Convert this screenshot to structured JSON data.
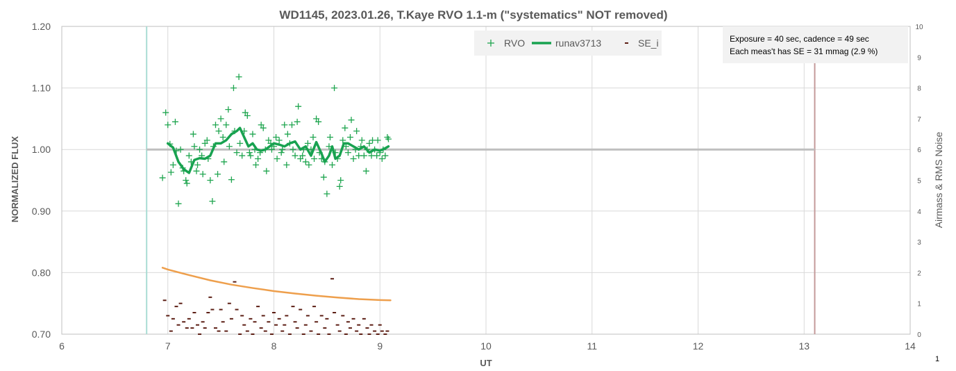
{
  "chart_data": {
    "type": "scatter",
    "title": "WD1145, 2023.01.26, T.Kaye RVO 1.1-m (\"systematics\" NOT removed)",
    "xlabel": "UT",
    "ylabel": "NORMALIZED FLUX",
    "y2label": "Airmass & RMS Noise",
    "xlim": [
      6,
      14
    ],
    "ylim": [
      0.7,
      1.2
    ],
    "y2lim": [
      0,
      10
    ],
    "x_ticks": [
      "6",
      "7",
      "8",
      "9",
      "10",
      "11",
      "12",
      "13",
      "14"
    ],
    "y_ticks": [
      "0.70",
      "0.80",
      "0.90",
      "1.00",
      "1.10",
      "1.20"
    ],
    "y2_ticks": [
      "0",
      "1",
      "2",
      "3",
      "4",
      "5",
      "6",
      "7",
      "8",
      "9",
      "10"
    ],
    "grid": true,
    "legend_position": "top-center",
    "legend": [
      "RVO",
      "runav3713",
      "SE_i"
    ],
    "note_lines": [
      "Exposure = 40 sec, cadence = 49 sec",
      "Each  meas't has SE = 31 mmag (2.9 %)"
    ],
    "corner_label": "1",
    "reference_lines": {
      "flux_level": 1.0,
      "flux_level_range": [
        6.8,
        13.1
      ],
      "start_ut": 6.8,
      "end_ut": 13.1
    },
    "colors": {
      "rvo": "#1fa54f",
      "runav": "#18a250",
      "se": "#5c1e14",
      "airmass": "#ee9f4c",
      "reference": "#bfbfbf",
      "start_line": "#a9dcd4",
      "end_line": "#c49a9a",
      "grid": "#d9d9d9"
    },
    "series": [
      {
        "name": "RVO",
        "axis": "left",
        "marker": "plus",
        "points": [
          [
            6.95,
            0.954
          ],
          [
            6.98,
            1.06
          ],
          [
            7.0,
            1.04
          ],
          [
            7.02,
            1.009
          ],
          [
            7.03,
            0.963
          ],
          [
            7.05,
            0.975
          ],
          [
            7.07,
            1.045
          ],
          [
            7.08,
            0.998
          ],
          [
            7.1,
            0.912
          ],
          [
            7.12,
            1.0
          ],
          [
            7.14,
            0.97
          ],
          [
            7.15,
            0.965
          ],
          [
            7.17,
            0.95
          ],
          [
            7.18,
            0.945
          ],
          [
            7.2,
            0.99
          ],
          [
            7.22,
            0.98
          ],
          [
            7.24,
            1.025
          ],
          [
            7.25,
            1.005
          ],
          [
            7.27,
            0.965
          ],
          [
            7.28,
            0.975
          ],
          [
            7.3,
            1.0
          ],
          [
            7.32,
            0.99
          ],
          [
            7.33,
            0.96
          ],
          [
            7.35,
            1.01
          ],
          [
            7.37,
            1.015
          ],
          [
            7.38,
            0.985
          ],
          [
            7.4,
            0.95
          ],
          [
            7.42,
            0.916
          ],
          [
            7.43,
            1.005
          ],
          [
            7.45,
            1.04
          ],
          [
            7.47,
            0.96
          ],
          [
            7.48,
            1.03
          ],
          [
            7.5,
            1.05
          ],
          [
            7.52,
            1.02
          ],
          [
            7.53,
            0.98
          ],
          [
            7.55,
            1.04
          ],
          [
            7.57,
            1.065
          ],
          [
            7.58,
            1.005
          ],
          [
            7.6,
            0.951
          ],
          [
            7.62,
            1.1
          ],
          [
            7.63,
            1.03
          ],
          [
            7.65,
            0.995
          ],
          [
            7.67,
            1.118
          ],
          [
            7.68,
            1.01
          ],
          [
            7.7,
            0.99
          ],
          [
            7.72,
            1.03
          ],
          [
            7.73,
            1.06
          ],
          [
            7.75,
            1.055
          ],
          [
            7.77,
            0.995
          ],
          [
            7.78,
            0.99
          ],
          [
            7.8,
            1.025
          ],
          [
            7.82,
            1.0
          ],
          [
            7.83,
            0.975
          ],
          [
            7.85,
            0.985
          ],
          [
            7.87,
            0.995
          ],
          [
            7.88,
            1.04
          ],
          [
            7.9,
            1.035
          ],
          [
            7.92,
            1.0
          ],
          [
            7.93,
            0.965
          ],
          [
            7.95,
            1.015
          ],
          [
            7.97,
            1.01
          ],
          [
            7.98,
            1.0
          ],
          [
            8.0,
            1.005
          ],
          [
            8.02,
            1.02
          ],
          [
            8.03,
            0.985
          ],
          [
            8.05,
            1.015
          ],
          [
            8.07,
            0.995
          ],
          [
            8.08,
            1.0
          ],
          [
            8.1,
            1.04
          ],
          [
            8.12,
            0.975
          ],
          [
            8.13,
            1.025
          ],
          [
            8.15,
            1.01
          ],
          [
            8.17,
            1.04
          ],
          [
            8.18,
            1.0
          ],
          [
            8.2,
            0.99
          ],
          [
            8.22,
            1.045
          ],
          [
            8.23,
            1.07
          ],
          [
            8.25,
            0.985
          ],
          [
            8.27,
            0.99
          ],
          [
            8.28,
            1.0
          ],
          [
            8.3,
            0.98
          ],
          [
            8.32,
            1.01
          ],
          [
            8.33,
            0.975
          ],
          [
            8.35,
            1.0
          ],
          [
            8.37,
            1.02
          ],
          [
            8.38,
            0.985
          ],
          [
            8.4,
            1.05
          ],
          [
            8.42,
            1.045
          ],
          [
            8.43,
            0.995
          ],
          [
            8.45,
            0.985
          ],
          [
            8.47,
            0.955
          ],
          [
            8.48,
            0.98
          ],
          [
            8.5,
            0.928
          ],
          [
            8.52,
            1.005
          ],
          [
            8.53,
            1.02
          ],
          [
            8.55,
            0.975
          ],
          [
            8.57,
            1.1
          ],
          [
            8.58,
            0.995
          ],
          [
            8.6,
            0.985
          ],
          [
            8.62,
            0.94
          ],
          [
            8.63,
            0.95
          ],
          [
            8.65,
            1.015
          ],
          [
            8.67,
            1.035
          ],
          [
            8.68,
            1.005
          ],
          [
            8.7,
            0.995
          ],
          [
            8.72,
            1.02
          ],
          [
            8.73,
            1.048
          ],
          [
            8.75,
            0.985
          ],
          [
            8.77,
            1.0
          ],
          [
            8.78,
            1.03
          ],
          [
            8.8,
            0.99
          ],
          [
            8.82,
            1.005
          ],
          [
            8.83,
            1.015
          ],
          [
            8.85,
            0.99
          ],
          [
            8.87,
            0.965
          ],
          [
            8.88,
            1.0
          ],
          [
            8.9,
            1.01
          ],
          [
            8.92,
            0.99
          ],
          [
            8.93,
            1.015
          ],
          [
            8.95,
            1.0
          ],
          [
            8.97,
            0.99
          ],
          [
            8.98,
            1.015
          ],
          [
            9.0,
            0.995
          ],
          [
            9.02,
            0.985
          ],
          [
            9.03,
            1.0
          ],
          [
            9.05,
            0.99
          ],
          [
            9.07,
            1.02
          ],
          [
            9.08,
            1.017
          ]
        ]
      },
      {
        "name": "runav3713",
        "axis": "left",
        "marker": "line",
        "points": [
          [
            7.0,
            1.01
          ],
          [
            7.05,
            1.003
          ],
          [
            7.1,
            0.98
          ],
          [
            7.15,
            0.968
          ],
          [
            7.2,
            0.962
          ],
          [
            7.25,
            0.983
          ],
          [
            7.3,
            0.986
          ],
          [
            7.35,
            0.985
          ],
          [
            7.4,
            0.99
          ],
          [
            7.45,
            1.01
          ],
          [
            7.5,
            1.01
          ],
          [
            7.55,
            1.015
          ],
          [
            7.6,
            1.025
          ],
          [
            7.65,
            1.03
          ],
          [
            7.68,
            1.035
          ],
          [
            7.72,
            1.02
          ],
          [
            7.76,
            1.005
          ],
          [
            7.8,
            1.01
          ],
          [
            7.84,
            1.0
          ],
          [
            7.88,
            0.998
          ],
          [
            7.92,
            1.0
          ],
          [
            7.96,
            1.005
          ],
          [
            8.0,
            1.01
          ],
          [
            8.05,
            1.008
          ],
          [
            8.1,
            1.005
          ],
          [
            8.15,
            1.01
          ],
          [
            8.2,
            1.013
          ],
          [
            8.25,
            1.0
          ],
          [
            8.3,
            1.005
          ],
          [
            8.35,
            0.99
          ],
          [
            8.4,
            1.012
          ],
          [
            8.45,
            0.993
          ],
          [
            8.48,
            0.98
          ],
          [
            8.52,
            0.99
          ],
          [
            8.55,
            1.005
          ],
          [
            8.58,
            0.985
          ],
          [
            8.62,
            0.99
          ],
          [
            8.66,
            1.01
          ],
          [
            8.7,
            1.01
          ],
          [
            8.75,
            1.005
          ],
          [
            8.8,
            1.0
          ],
          [
            8.85,
            1.005
          ],
          [
            8.9,
            0.995
          ],
          [
            8.95,
            1.0
          ],
          [
            9.0,
            0.998
          ],
          [
            9.05,
            1.002
          ],
          [
            9.08,
            1.005
          ]
        ]
      },
      {
        "name": "SE_i",
        "axis": "right",
        "marker": "dash",
        "points": [
          [
            6.97,
            1.1
          ],
          [
            7.0,
            0.6
          ],
          [
            7.03,
            0.1
          ],
          [
            7.05,
            0.5
          ],
          [
            7.08,
            0.9
          ],
          [
            7.1,
            0.3
          ],
          [
            7.12,
            1.0
          ],
          [
            7.15,
            0.4
          ],
          [
            7.18,
            0.2
          ],
          [
            7.2,
            0.5
          ],
          [
            7.23,
            0.2
          ],
          [
            7.25,
            0.7
          ],
          [
            7.28,
            0.3
          ],
          [
            7.3,
            0.0
          ],
          [
            7.33,
            0.4
          ],
          [
            7.35,
            0.2
          ],
          [
            7.38,
            0.7
          ],
          [
            7.4,
            1.2
          ],
          [
            7.42,
            0.8
          ],
          [
            7.45,
            0.2
          ],
          [
            7.48,
            0.1
          ],
          [
            7.5,
            0.8
          ],
          [
            7.52,
            0.4
          ],
          [
            7.55,
            0.1
          ],
          [
            7.58,
            1.0
          ],
          [
            7.6,
            0.5
          ],
          [
            7.63,
            1.7
          ],
          [
            7.65,
            0.8
          ],
          [
            7.68,
            0.0
          ],
          [
            7.7,
            0.6
          ],
          [
            7.72,
            0.3
          ],
          [
            7.75,
            0.1
          ],
          [
            7.78,
            0.5
          ],
          [
            7.8,
            0.0
          ],
          [
            7.82,
            0.4
          ],
          [
            7.85,
            0.9
          ],
          [
            7.88,
            0.2
          ],
          [
            7.9,
            0.6
          ],
          [
            7.92,
            0.1
          ],
          [
            7.95,
            0.4
          ],
          [
            7.98,
            0.0
          ],
          [
            8.0,
            0.7
          ],
          [
            8.02,
            0.3
          ],
          [
            8.05,
            0.5
          ],
          [
            8.08,
            0.1
          ],
          [
            8.1,
            0.3
          ],
          [
            8.12,
            0.6
          ],
          [
            8.15,
            0.0
          ],
          [
            8.18,
            0.9
          ],
          [
            8.2,
            0.4
          ],
          [
            8.22,
            0.2
          ],
          [
            8.25,
            0.8
          ],
          [
            8.28,
            0.0
          ],
          [
            8.3,
            0.3
          ],
          [
            8.32,
            0.6
          ],
          [
            8.35,
            0.1
          ],
          [
            8.38,
            0.9
          ],
          [
            8.4,
            0.4
          ],
          [
            8.42,
            0.0
          ],
          [
            8.45,
            0.6
          ],
          [
            8.48,
            0.2
          ],
          [
            8.5,
            0.5
          ],
          [
            8.52,
            0.0
          ],
          [
            8.55,
            1.8
          ],
          [
            8.57,
            0.7
          ],
          [
            8.6,
            0.3
          ],
          [
            8.62,
            0.1
          ],
          [
            8.65,
            0.6
          ],
          [
            8.68,
            0.0
          ],
          [
            8.7,
            0.4
          ],
          [
            8.72,
            0.2
          ],
          [
            8.75,
            0.5
          ],
          [
            8.78,
            0.1
          ],
          [
            8.8,
            0.3
          ],
          [
            8.82,
            0.0
          ],
          [
            8.85,
            0.5
          ],
          [
            8.88,
            0.2
          ],
          [
            8.9,
            0.0
          ],
          [
            8.92,
            0.3
          ],
          [
            8.95,
            0.1
          ],
          [
            8.98,
            0.0
          ],
          [
            9.0,
            0.3
          ],
          [
            9.02,
            0.1
          ],
          [
            9.05,
            0.0
          ],
          [
            9.07,
            0.1
          ]
        ]
      },
      {
        "axis": "right",
        "marker": "line",
        "points": [
          [
            6.95,
            2.16
          ],
          [
            7.0,
            2.1
          ],
          [
            7.2,
            1.92
          ],
          [
            7.4,
            1.75
          ],
          [
            7.6,
            1.61
          ],
          [
            7.8,
            1.5
          ],
          [
            8.0,
            1.4
          ],
          [
            8.2,
            1.32
          ],
          [
            8.4,
            1.25
          ],
          [
            8.6,
            1.19
          ],
          [
            8.8,
            1.14
          ],
          [
            9.0,
            1.11
          ],
          [
            9.1,
            1.1
          ]
        ]
      }
    ]
  }
}
